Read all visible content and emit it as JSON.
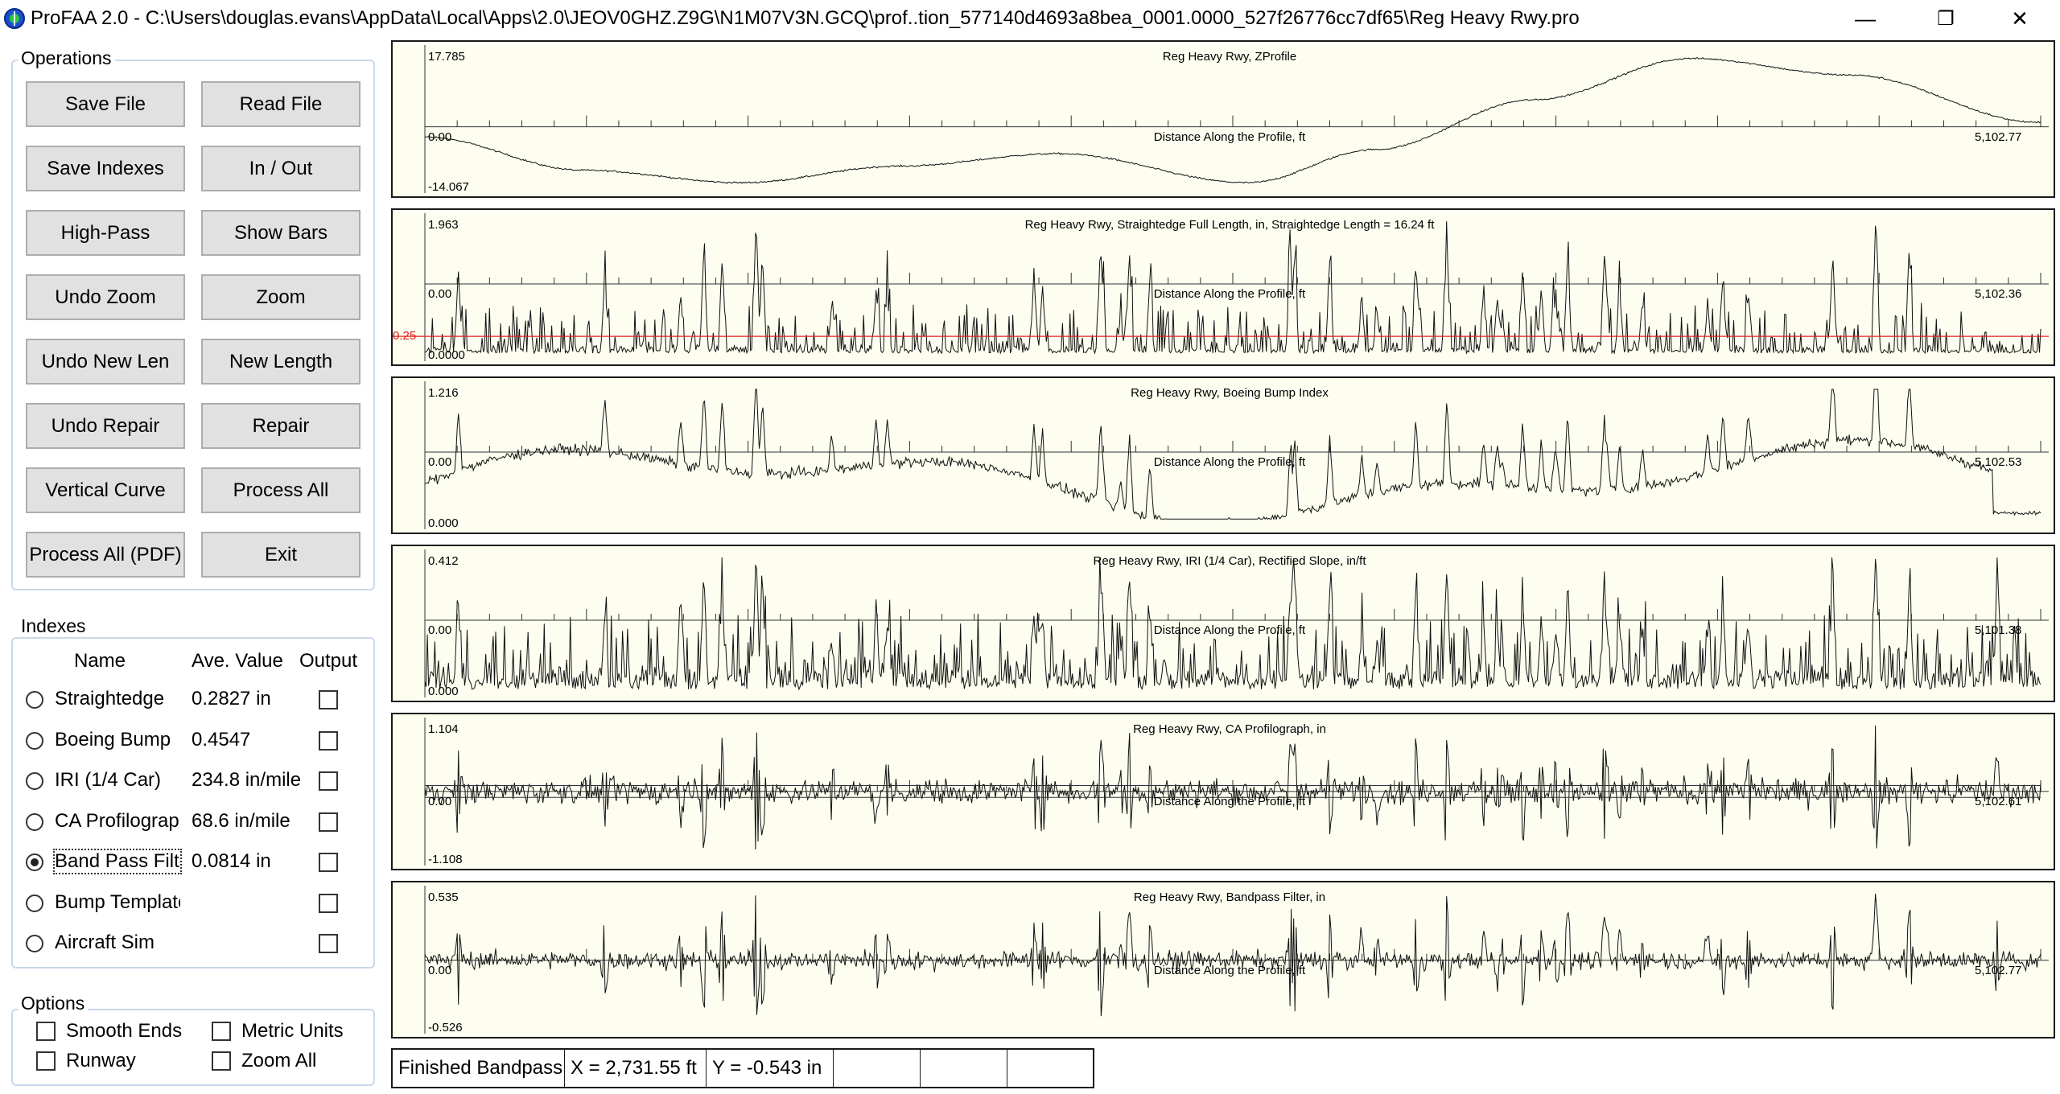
{
  "window": {
    "title": "ProFAA 2.0 - C:\\Users\\douglas.evans\\AppData\\Local\\Apps\\2.0\\JEOV0GHZ.Z9G\\N1M07V3N.GCQ\\prof..tion_577140d4693a8bea_0001.0000_527f26776cc7df65\\Reg Heavy Rwy.pro",
    "minimize": "—",
    "maximize": "❐",
    "close": "✕"
  },
  "operations": {
    "title": "Operations",
    "buttons": [
      {
        "label": "Save File"
      },
      {
        "label": "Read File"
      },
      {
        "label": "Save Indexes"
      },
      {
        "label": "In / Out"
      },
      {
        "label": "High-Pass"
      },
      {
        "label": "Show Bars"
      },
      {
        "label": "Undo Zoom"
      },
      {
        "label": "Zoom"
      },
      {
        "label": "Undo New Len"
      },
      {
        "label": "New Length"
      },
      {
        "label": "Undo Repair"
      },
      {
        "label": "Repair"
      },
      {
        "label": "Vertical Curve"
      },
      {
        "label": "Process All"
      },
      {
        "label": "Process All (PDF)"
      },
      {
        "label": "Exit"
      }
    ]
  },
  "indexes": {
    "title": "Indexes",
    "col_name": "Name",
    "col_value": "Ave. Value",
    "col_output": "Output",
    "rows": [
      {
        "name": "Straightedge",
        "value": "0.2827 in",
        "selected": false,
        "output": false
      },
      {
        "name": "Boeing Bump",
        "value": "0.4547",
        "selected": false,
        "output": false
      },
      {
        "name": "IRI (1/4 Car)",
        "value": "234.8 in/mile",
        "selected": false,
        "output": false
      },
      {
        "name": "CA Profilograph",
        "value": "68.6 in/mile",
        "selected": false,
        "output": false
      },
      {
        "name": "Band Pass Filter",
        "value": "0.0814 in",
        "selected": true,
        "output": false
      },
      {
        "name": "Bump Template",
        "value": "",
        "selected": false,
        "output": false
      },
      {
        "name": "Aircraft Sim",
        "value": "",
        "selected": false,
        "output": false
      }
    ]
  },
  "options": {
    "title": "Options",
    "smooth_ends": "Smooth Ends",
    "metric_units": "Metric Units",
    "runway": "Runway",
    "zoom_all": "Zoom All"
  },
  "status": {
    "message": "Finished Bandpass",
    "x": "X = 2,731.55 ft",
    "y": "Y = -0.543 in",
    "extra1": "",
    "extra2": ""
  },
  "chart_data": [
    {
      "type": "line",
      "title": "Reg Heavy Rwy, ZProfile",
      "xlabel": "Distance Along the Profile, ft",
      "ymax_label": "17.785",
      "ymin_label": "-14.067",
      "zero_label": "0.00",
      "xmax_label": "5,102.77",
      "xlim": [
        0,
        5102.77
      ],
      "ylim": [
        -14.067,
        17.785
      ],
      "series": [
        {
          "x": [
            0,
            500,
            1000,
            1500,
            2000,
            2600,
            3000,
            3500,
            4000,
            4500,
            5102.77
          ],
          "y": [
            -2.5,
            -10.5,
            -13.5,
            -9.5,
            -6.5,
            -13.5,
            -5.5,
            6.5,
            16.5,
            12.5,
            1.0
          ]
        }
      ]
    },
    {
      "type": "line",
      "title": "Reg Heavy Rwy, Straightedge Full Length, in, Straightedge Length = 16.24 ft",
      "xlabel": "Distance Along the Profile, ft",
      "ymax_label": "1.963",
      "ymin_label": "0.0000",
      "zero_label": "0.00",
      "xmax_label": "5,102.36",
      "threshold_label": "0.25",
      "threshold": 0.25,
      "xlim": [
        0,
        5102.36
      ],
      "ylim": [
        0,
        1.963
      ]
    },
    {
      "type": "line",
      "title": "Reg Heavy Rwy, Boeing Bump Index",
      "xlabel": "Distance Along the Profile, ft",
      "ymax_label": "1.216",
      "ymin_label": "0.000",
      "zero_label": "0.00",
      "xmax_label": "5,102.53",
      "xlim": [
        0,
        5102.53
      ],
      "ylim": [
        0,
        1.216
      ]
    },
    {
      "type": "line",
      "title": "Reg Heavy Rwy, IRI (1/4 Car), Rectified Slope, in/ft",
      "xlabel": "Distance Along the Profile, ft",
      "ymax_label": "0.412",
      "ymin_label": "0.000",
      "zero_label": "0.00",
      "xmax_label": "5,101.38",
      "xlim": [
        0,
        5101.38
      ],
      "ylim": [
        0,
        0.412
      ]
    },
    {
      "type": "line",
      "title": "Reg Heavy Rwy, CA Profilograph, in",
      "xlabel": "Distance Along the Profile, ft",
      "ymax_label": "1.104",
      "ymin_label": "-1.108",
      "zero_label": "0.00",
      "xmax_label": "5,102.61",
      "xlim": [
        0,
        5102.61
      ],
      "ylim": [
        -1.108,
        1.104
      ]
    },
    {
      "type": "line",
      "title": "Reg Heavy Rwy, Bandpass Filter, in",
      "xlabel": "Distance Along the Profile, ft",
      "ymax_label": "0.535",
      "ymin_label": "-0.526",
      "zero_label": "0.00",
      "xmax_label": "5,102.77",
      "xlim": [
        0,
        5102.77
      ],
      "ylim": [
        -0.526,
        0.535
      ]
    }
  ]
}
